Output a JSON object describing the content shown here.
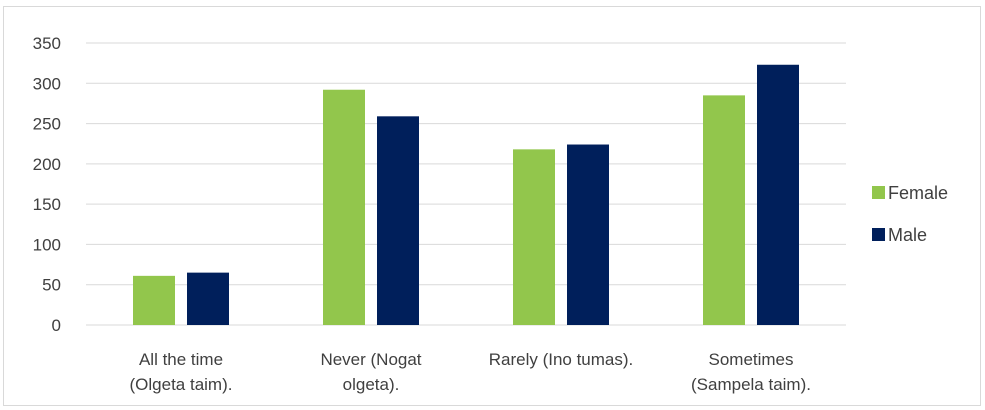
{
  "chart_data": {
    "type": "bar",
    "categories": [
      [
        "All the time",
        "(Olgeta taim)."
      ],
      [
        "Never (Nogat",
        "olgeta)."
      ],
      [
        "Rarely (Ino tumas)."
      ],
      [
        "Sometimes",
        "(Sampela taim)."
      ]
    ],
    "series": [
      {
        "name": "Female",
        "color": "#92c64c",
        "values": [
          61,
          292,
          218,
          285
        ]
      },
      {
        "name": "Male",
        "color": "#001f5b",
        "values": [
          65,
          259,
          224,
          323
        ]
      }
    ],
    "ylim": [
      0,
      350
    ],
    "yticks": [
      0,
      50,
      100,
      150,
      200,
      250,
      300,
      350
    ],
    "grid": true,
    "legend_position": "right",
    "gridline_color": "#d9d9d9"
  }
}
